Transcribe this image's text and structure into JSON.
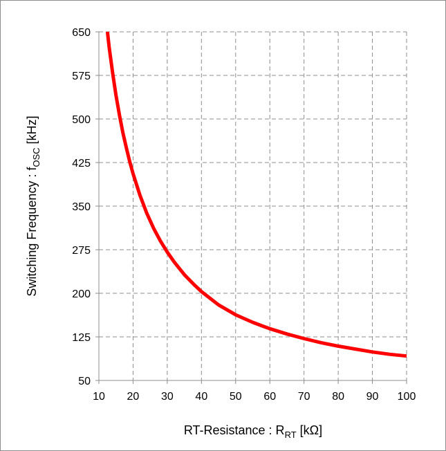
{
  "chart_data": {
    "type": "line",
    "title": "",
    "xlabel": "RT-Resistance : R",
    "xlabel_subscript": "RT",
    "xlabel_unit": " [kΩ]",
    "ylabel": "Switching Frequency : f",
    "ylabel_subscript": "OSC",
    "ylabel_unit": " [kHz]",
    "xlim": [
      10,
      100
    ],
    "ylim": [
      50,
      650
    ],
    "xticks": [
      "10",
      "20",
      "30",
      "40",
      "50",
      "60",
      "70",
      "80",
      "90",
      "100"
    ],
    "yticks": [
      "50",
      "125",
      "200",
      "275",
      "350",
      "425",
      "500",
      "575",
      "650"
    ],
    "grid": true,
    "grid_style": "dashed",
    "series": [
      {
        "name": "",
        "color": "#ff0000",
        "x": [
          12.5,
          13,
          14,
          15,
          16,
          17,
          18,
          19,
          20,
          22,
          24,
          26,
          28,
          30,
          32,
          35,
          38,
          40,
          45,
          50,
          55,
          60,
          65,
          70,
          75,
          80,
          85,
          90,
          95,
          100
        ],
        "y": [
          650,
          624,
          580,
          541,
          507,
          477,
          451,
          427,
          406,
          369,
          338,
          312,
          290,
          271,
          254,
          232,
          214,
          203,
          180,
          163,
          150,
          139,
          130,
          122,
          115,
          109,
          104,
          99,
          95,
          92
        ]
      }
    ]
  }
}
